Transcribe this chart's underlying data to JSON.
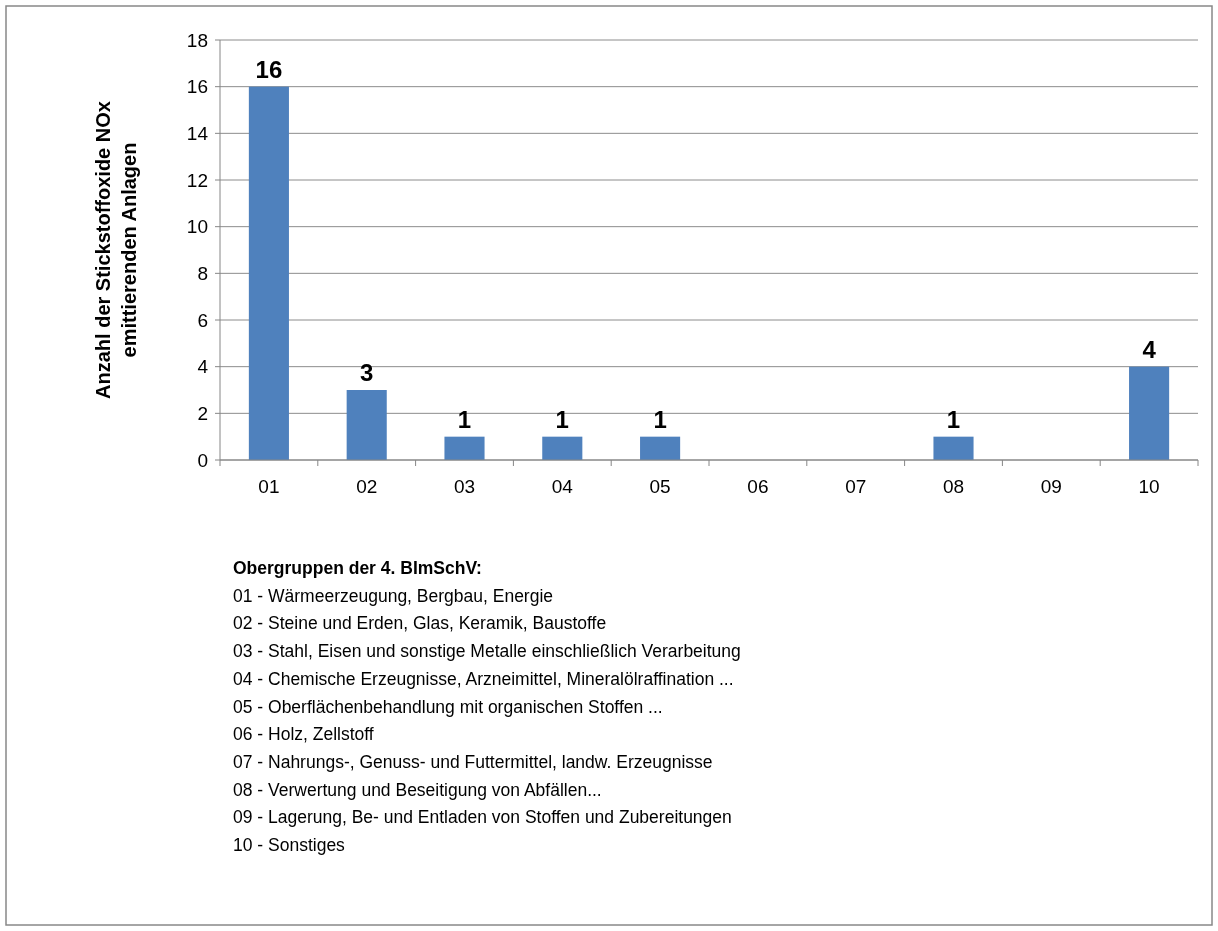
{
  "chart_data": {
    "type": "bar",
    "categories": [
      "01",
      "02",
      "03",
      "04",
      "05",
      "06",
      "07",
      "08",
      "09",
      "10"
    ],
    "values": [
      16,
      3,
      1,
      1,
      1,
      0,
      0,
      1,
      0,
      4
    ],
    "value_labels": [
      "16",
      "3",
      "1",
      "1",
      "1",
      null,
      null,
      "1",
      null,
      "4"
    ],
    "color": "#4f81bd",
    "ylabel": "Anzahl der  Stickstoffoxide NOx\nemittierenden Anlagen",
    "ylim": [
      0,
      18
    ],
    "yticks": [
      0,
      2,
      4,
      6,
      8,
      10,
      12,
      14,
      16,
      18
    ],
    "grid": "y",
    "annotations": [
      "Obergruppen  der 4. BImSchV:",
      "01 - Wärmeerzeugung, Bergbau, Energie",
      "02 - Steine und Erden, Glas, Keramik, Baustoffe",
      "03 - Stahl, Eisen und sonstige Metalle einschließlich Verarbeitung",
      "04 - Chemische Erzeugnisse, Arzneimittel, Mineralölraffination ...",
      "05 - Oberflächenbehandlung mit organischen Stoffen ...",
      "06 - Holz, Zellstoff",
      "07 - Nahrungs-, Genuss- und Futtermittel, landw. Erzeugnisse",
      "08 - Verwertung und Beseitigung von Abfällen...",
      "09 - Lagerung, Be- und Entladen von Stoffen und Zubereitungen",
      "10 - Sonstiges"
    ]
  }
}
